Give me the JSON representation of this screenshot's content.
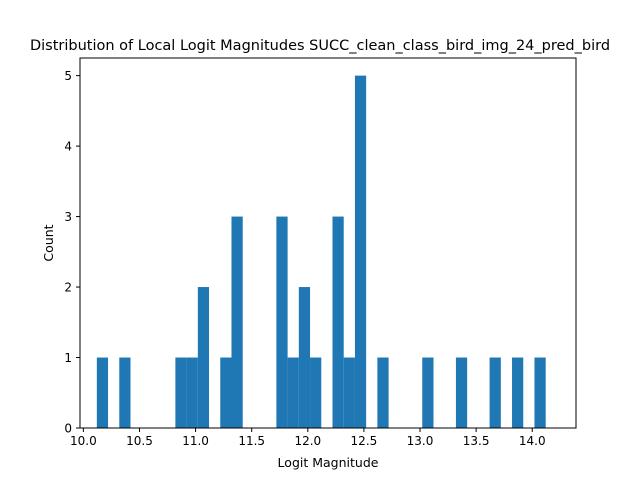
{
  "chart_data": {
    "type": "bar",
    "title": "Distribution of Local Logit Magnitudes SUCC_clean_class_bird_img_24_pred_bird",
    "xlabel": "Logit Magnitude",
    "ylabel": "Count",
    "xlim": [
      9.97,
      14.39
    ],
    "ylim": [
      0,
      5.25
    ],
    "xticks": [
      "10.0",
      "10.5",
      "11.0",
      "11.5",
      "12.0",
      "12.5",
      "13.0",
      "13.5",
      "14.0",
      "14.5"
    ],
    "yticks": [
      "0",
      "1",
      "2",
      "3",
      "4",
      "5"
    ],
    "bin_width": 0.1,
    "bins": [
      {
        "x": 10.12,
        "count": 1
      },
      {
        "x": 10.32,
        "count": 1
      },
      {
        "x": 10.82,
        "count": 1
      },
      {
        "x": 10.92,
        "count": 1
      },
      {
        "x": 11.02,
        "count": 2
      },
      {
        "x": 11.22,
        "count": 1
      },
      {
        "x": 11.32,
        "count": 3
      },
      {
        "x": 11.72,
        "count": 3
      },
      {
        "x": 11.82,
        "count": 1
      },
      {
        "x": 11.92,
        "count": 2
      },
      {
        "x": 12.02,
        "count": 1
      },
      {
        "x": 12.22,
        "count": 3
      },
      {
        "x": 12.32,
        "count": 1
      },
      {
        "x": 12.42,
        "count": 5
      },
      {
        "x": 12.62,
        "count": 1
      },
      {
        "x": 13.02,
        "count": 1
      },
      {
        "x": 13.32,
        "count": 1
      },
      {
        "x": 13.62,
        "count": 1
      },
      {
        "x": 13.82,
        "count": 1
      },
      {
        "x": 14.02,
        "count": 1
      }
    ],
    "color": "#1f77b4",
    "grid": false,
    "legend": "none"
  }
}
